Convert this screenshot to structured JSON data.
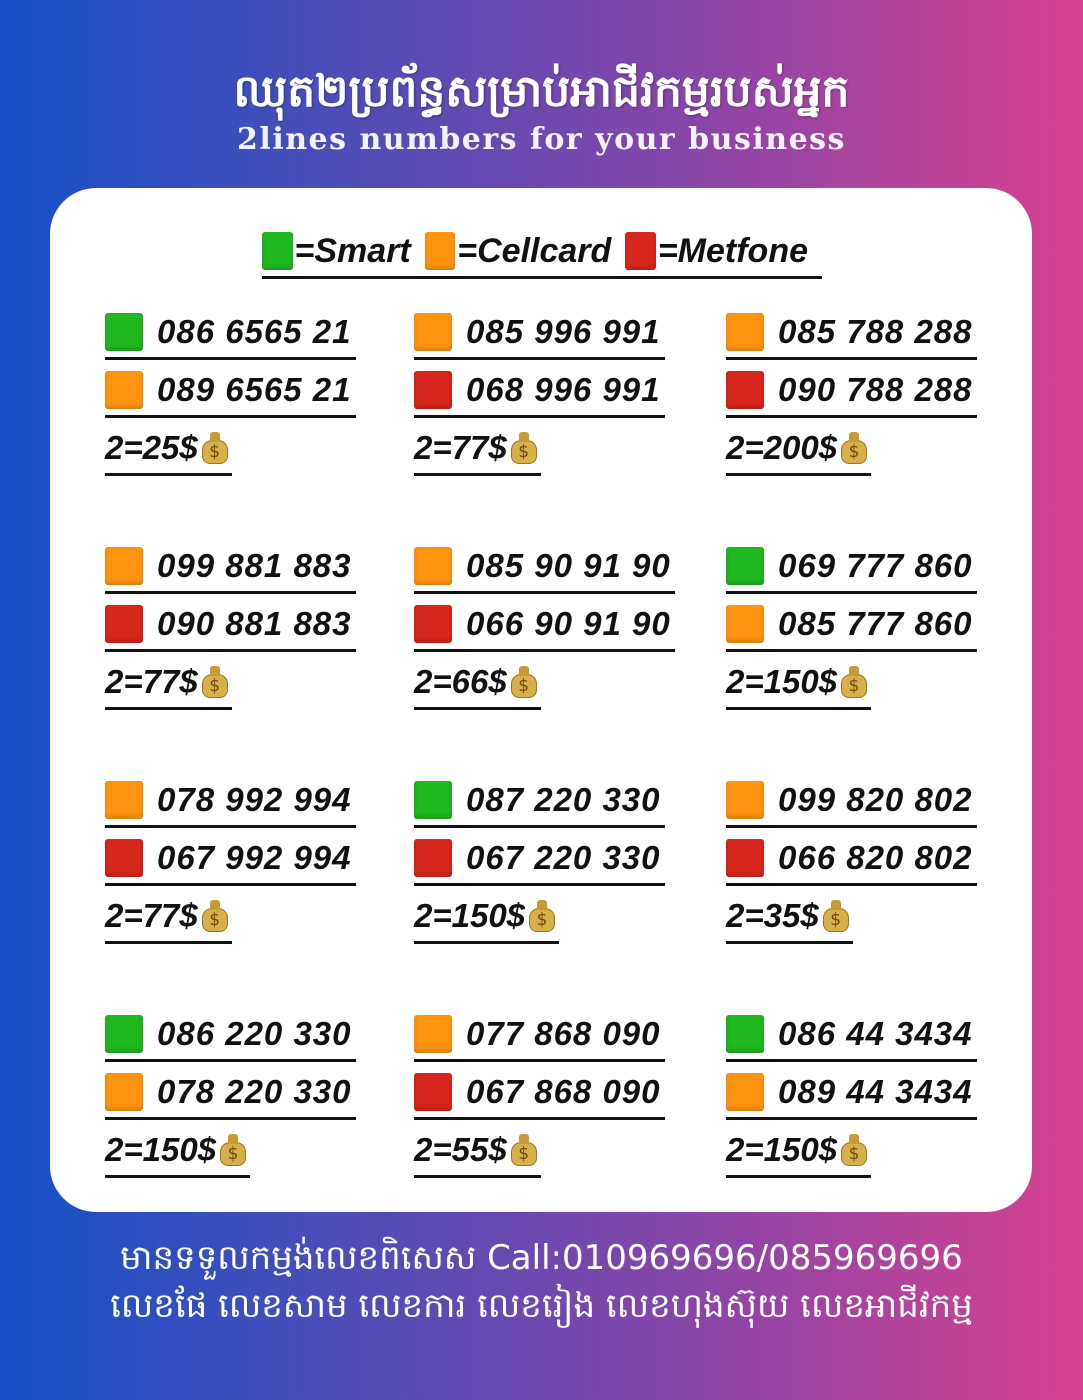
{
  "header": {
    "title_km": "ឈុត២ប្រព័ន្ធសម្រាប់អាជីវកម្មរបស់អ្នក",
    "title_en": "2lines numbers for your business"
  },
  "colors": {
    "Smart": "#1fb81f",
    "Cellcard": "#ff9410",
    "Metfone": "#d7261b"
  },
  "legend": [
    {
      "operator": "Smart",
      "label": "=Smart"
    },
    {
      "operator": "Cellcard",
      "label": "=Cellcard"
    },
    {
      "operator": "Metfone",
      "label": "=Metfone"
    }
  ],
  "sets": [
    {
      "lines": [
        {
          "operator": "Smart",
          "number": "086 6565 21"
        },
        {
          "operator": "Cellcard",
          "number": "089 6565 21"
        }
      ],
      "price": "2=25$",
      "icon": "money-bag-icon"
    },
    {
      "lines": [
        {
          "operator": "Cellcard",
          "number": "085 996 991"
        },
        {
          "operator": "Metfone",
          "number": "068 996 991"
        }
      ],
      "price": "2=77$",
      "icon": "money-bag-icon"
    },
    {
      "lines": [
        {
          "operator": "Cellcard",
          "number": "085 788 288"
        },
        {
          "operator": "Metfone",
          "number": "090 788 288"
        }
      ],
      "price": "2=200$",
      "icon": "money-bag-icon"
    },
    {
      "lines": [
        {
          "operator": "Cellcard",
          "number": "099 881 883"
        },
        {
          "operator": "Metfone",
          "number": "090 881 883"
        }
      ],
      "price": "2=77$",
      "icon": "money-bag-icon"
    },
    {
      "lines": [
        {
          "operator": "Cellcard",
          "number": "085 90 91 90"
        },
        {
          "operator": "Metfone",
          "number": "066 90 91 90"
        }
      ],
      "price": "2=66$",
      "icon": "money-bag-icon"
    },
    {
      "lines": [
        {
          "operator": "Smart",
          "number": "069 777 860"
        },
        {
          "operator": "Cellcard",
          "number": "085 777 860"
        }
      ],
      "price": "2=150$",
      "icon": "money-bag-icon"
    },
    {
      "lines": [
        {
          "operator": "Cellcard",
          "number": "078 992 994"
        },
        {
          "operator": "Metfone",
          "number": "067 992 994"
        }
      ],
      "price": "2=77$",
      "icon": "money-bag-icon"
    },
    {
      "lines": [
        {
          "operator": "Smart",
          "number": "087 220 330"
        },
        {
          "operator": "Metfone",
          "number": "067 220 330"
        }
      ],
      "price": "2=150$",
      "icon": "money-bag-icon"
    },
    {
      "lines": [
        {
          "operator": "Cellcard",
          "number": "099 820 802"
        },
        {
          "operator": "Metfone",
          "number": "066 820 802"
        }
      ],
      "price": "2=35$",
      "icon": "money-bag-icon"
    },
    {
      "lines": [
        {
          "operator": "Smart",
          "number": "086 220 330"
        },
        {
          "operator": "Cellcard",
          "number": "078 220 330"
        }
      ],
      "price": "2=150$",
      "icon": "money-bag-icon"
    },
    {
      "lines": [
        {
          "operator": "Cellcard",
          "number": "077 868 090"
        },
        {
          "operator": "Metfone",
          "number": "067 868 090"
        }
      ],
      "price": "2=55$",
      "icon": "money-bag-icon"
    },
    {
      "lines": [
        {
          "operator": "Smart",
          "number": "086 44 3434"
        },
        {
          "operator": "Cellcard",
          "number": "089 44 3434"
        }
      ],
      "price": "2=150$",
      "icon": "money-bag-icon"
    }
  ],
  "footer": {
    "line1": "មានទទួលកម្មង់លេខពិសេស Call:010969696/085969696",
    "line2": "លេខផែ លេខសាម លេខការ លេខរៀង លេខហុងស៊ុយ លេខអាជីវកម្ម"
  }
}
